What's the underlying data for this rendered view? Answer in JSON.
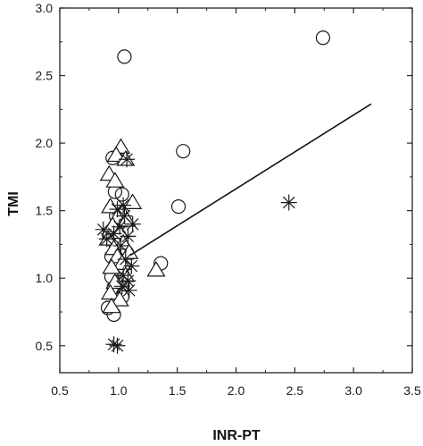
{
  "chart_data": {
    "type": "scatter",
    "title": "",
    "xlabel": "INR-PT",
    "ylabel": "TMI",
    "xlim": [
      0.5,
      3.5
    ],
    "ylim": [
      0.3,
      3.0
    ],
    "xticks": [
      "0.5",
      "1.0",
      "1.5",
      "2.0",
      "2.5",
      "3.0",
      "3.5"
    ],
    "yticks": [
      "0.5",
      "1.0",
      "1.5",
      "2.0",
      "2.5",
      "3.0"
    ],
    "grid": false,
    "legend": "none",
    "series": [
      {
        "marker": "circle",
        "points": [
          [
            1.05,
            2.64
          ],
          [
            2.74,
            2.78
          ],
          [
            1.55,
            1.94
          ],
          [
            1.51,
            1.53
          ],
          [
            1.36,
            1.11
          ],
          [
            0.95,
            1.89
          ],
          [
            0.97,
            1.64
          ],
          [
            1.03,
            1.62
          ],
          [
            0.98,
            1.46
          ],
          [
            1.01,
            1.41
          ],
          [
            0.96,
            1.36
          ],
          [
            0.92,
            1.31
          ],
          [
            0.97,
            1.26
          ],
          [
            1.02,
            1.21
          ],
          [
            1.07,
            1.19
          ],
          [
            0.94,
            1.16
          ],
          [
            0.98,
            1.11
          ],
          [
            0.94,
            1.01
          ],
          [
            1.01,
            0.97
          ],
          [
            0.96,
            0.93
          ],
          [
            1.03,
            0.86
          ],
          [
            0.91,
            0.78
          ],
          [
            0.96,
            0.73
          ]
        ]
      },
      {
        "marker": "triangle",
        "points": [
          [
            1.02,
            1.97
          ],
          [
            0.98,
            1.91
          ],
          [
            1.06,
            1.88
          ],
          [
            0.92,
            1.77
          ],
          [
            0.97,
            1.72
          ],
          [
            1.12,
            1.56
          ],
          [
            0.93,
            1.53
          ],
          [
            1.03,
            1.49
          ],
          [
            0.99,
            1.45
          ],
          [
            1.07,
            1.43
          ],
          [
            0.95,
            1.39
          ],
          [
            1.01,
            1.34
          ],
          [
            0.91,
            1.29
          ],
          [
            1.04,
            1.26
          ],
          [
            0.96,
            1.22
          ],
          [
            1.09,
            1.19
          ],
          [
            0.99,
            1.16
          ],
          [
            1.03,
            1.11
          ],
          [
            0.94,
            1.08
          ],
          [
            1.32,
            1.06
          ],
          [
            1.06,
            1.02
          ],
          [
            0.97,
            0.97
          ],
          [
            0.93,
            0.89
          ],
          [
            1.01,
            0.84
          ],
          [
            0.94,
            0.79
          ]
        ]
      },
      {
        "marker": "asterisk",
        "points": [
          [
            1.07,
            1.88
          ],
          [
            1.04,
            1.54
          ],
          [
            0.99,
            1.51
          ],
          [
            1.05,
            1.46
          ],
          [
            1.12,
            1.4
          ],
          [
            1.01,
            1.38
          ],
          [
            0.87,
            1.36
          ],
          [
            0.96,
            1.33
          ],
          [
            0.9,
            1.29
          ],
          [
            1.08,
            1.31
          ],
          [
            1.02,
            1.24
          ],
          [
            1.06,
            1.14
          ],
          [
            1.11,
            1.09
          ],
          [
            1.04,
            1.02
          ],
          [
            1.08,
            0.98
          ],
          [
            1.03,
            0.94
          ],
          [
            1.09,
            0.91
          ],
          [
            0.96,
            0.51
          ],
          [
            0.99,
            0.5
          ],
          [
            2.45,
            1.56
          ]
        ]
      }
    ],
    "fit_line": {
      "x": [
        1.1,
        3.15
      ],
      "y": [
        1.17,
        2.29
      ]
    }
  }
}
